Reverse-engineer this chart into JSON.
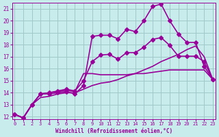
{
  "xlabel": "Windchill (Refroidissement éolien,°C)",
  "ylabel": "",
  "bg_color": "#c8ecec",
  "grid_color": "#a0c8c8",
  "line_color": "#990099",
  "xlim": [
    0,
    23
  ],
  "ylim": [
    12,
    21.5
  ],
  "xticks": [
    0,
    1,
    2,
    3,
    4,
    5,
    6,
    7,
    8,
    9,
    10,
    11,
    12,
    13,
    14,
    15,
    16,
    17,
    18,
    19,
    20,
    21,
    22,
    23
  ],
  "yticks": [
    12,
    13,
    14,
    15,
    16,
    17,
    18,
    19,
    20,
    21
  ],
  "series": [
    {
      "x": [
        0,
        1,
        2,
        3,
        4,
        5,
        6,
        7,
        8,
        9,
        10,
        11,
        12,
        13,
        14,
        15,
        16,
        17,
        18,
        19,
        20,
        21,
        22,
        23
      ],
      "y": [
        12.2,
        11.9,
        13.0,
        13.9,
        13.9,
        14.0,
        14.1,
        13.9,
        14.6,
        18.7,
        18.8,
        18.8,
        18.5,
        19.3,
        19.1,
        20.0,
        21.2,
        21.4,
        20.0,
        18.9,
        18.2,
        18.2,
        16.2,
        15.1
      ],
      "marker": "D",
      "markersize": 3,
      "linewidth": 1.2
    },
    {
      "x": [
        0,
        1,
        2,
        3,
        4,
        5,
        6,
        7,
        8,
        9,
        10,
        11,
        12,
        13,
        14,
        15,
        16,
        17,
        18,
        19,
        20,
        21,
        22,
        23
      ],
      "y": [
        12.2,
        11.9,
        13.0,
        13.9,
        14.0,
        14.1,
        14.2,
        14.1,
        15.6,
        15.6,
        15.5,
        15.5,
        15.5,
        15.5,
        15.6,
        15.6,
        15.7,
        15.8,
        15.9,
        15.9,
        15.9,
        15.9,
        15.9,
        15.1
      ],
      "marker": null,
      "markersize": 0,
      "linewidth": 1.2
    },
    {
      "x": [
        0,
        1,
        2,
        3,
        4,
        5,
        6,
        7,
        8,
        9,
        10,
        11,
        12,
        13,
        14,
        15,
        16,
        17,
        18,
        19,
        20,
        21,
        22,
        23
      ],
      "y": [
        12.2,
        11.9,
        13.0,
        13.6,
        13.7,
        13.9,
        14.0,
        14.0,
        14.3,
        14.6,
        14.8,
        14.9,
        15.1,
        15.4,
        15.6,
        15.9,
        16.2,
        16.6,
        16.9,
        17.2,
        17.6,
        17.9,
        17.0,
        15.1
      ],
      "marker": null,
      "markersize": 0,
      "linewidth": 1.2
    },
    {
      "x": [
        0,
        1,
        2,
        3,
        4,
        5,
        6,
        7,
        8,
        9,
        10,
        11,
        12,
        13,
        14,
        15,
        16,
        17,
        18,
        19,
        20,
        21,
        22,
        23
      ],
      "y": [
        12.2,
        11.9,
        13.0,
        13.9,
        14.0,
        14.15,
        14.3,
        14.15,
        15.0,
        16.6,
        17.15,
        17.2,
        16.8,
        17.35,
        17.35,
        17.8,
        18.45,
        18.6,
        17.95,
        17.05,
        17.05,
        17.05,
        16.6,
        15.1
      ],
      "marker": "D",
      "markersize": 3,
      "linewidth": 1.2
    }
  ]
}
